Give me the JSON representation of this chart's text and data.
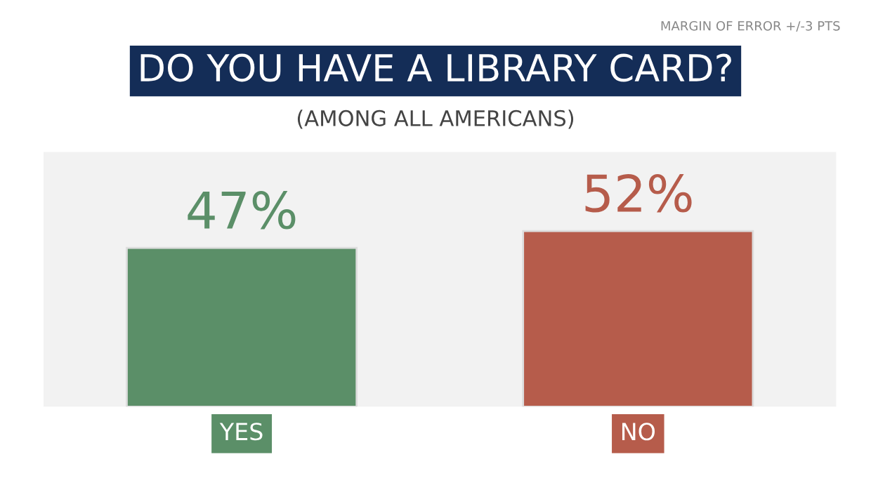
{
  "chart_data": {
    "type": "bar",
    "title": "DO YOU HAVE A LIBRARY CARD?",
    "subtitle": "(AMONG ALL AMERICANS)",
    "annotations": [
      "MARGIN OF ERROR +/-3 PTS"
    ],
    "categories": [
      "YES",
      "NO"
    ],
    "values": [
      47,
      52
    ],
    "colors": [
      "#5b8f68",
      "#b65c4b"
    ],
    "value_labels": [
      "47%",
      "52%"
    ],
    "grid": false,
    "legend": false
  }
}
